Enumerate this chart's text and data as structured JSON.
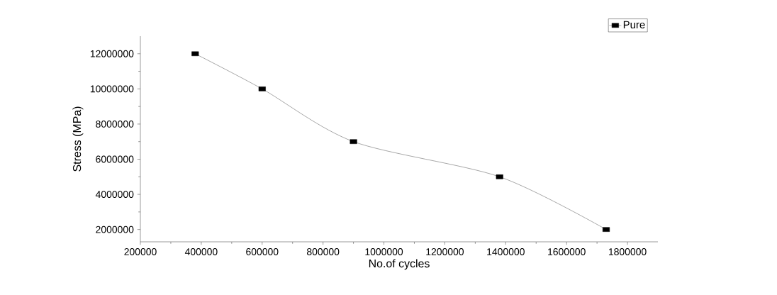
{
  "chart_data": {
    "type": "line",
    "xlabel": "No.of cycles",
    "ylabel": "Stress (MPa)",
    "x": [
      380000,
      600000,
      900000,
      1380000,
      1730000
    ],
    "series": [
      {
        "name": "Pure",
        "color": "#000000",
        "values": [
          12000000,
          10000000,
          7000000,
          5000000,
          2000000
        ]
      }
    ],
    "xlim": [
      200000,
      1900000
    ],
    "ylim": [
      1300000,
      13000000
    ],
    "xticks": [
      200000,
      400000,
      600000,
      800000,
      1000000,
      1200000,
      1400000,
      1600000,
      1800000
    ],
    "yticks": [
      2000000,
      4000000,
      6000000,
      8000000,
      10000000,
      12000000
    ],
    "marker": "square",
    "line_style": "solid",
    "legend": "top right",
    "grid": false
  }
}
